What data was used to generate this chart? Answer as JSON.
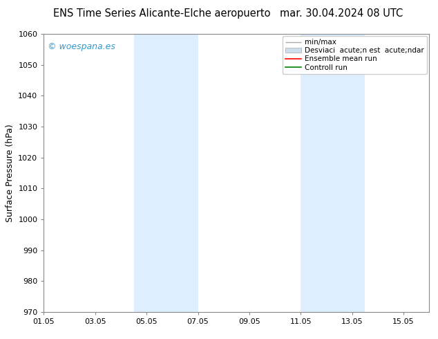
{
  "title_left": "ENS Time Series Alicante-Elche aeropuerto",
  "title_right": "mar. 30.04.2024 08 UTC",
  "ylabel": "Surface Pressure (hPa)",
  "ylim": [
    970,
    1060
  ],
  "yticks": [
    970,
    980,
    990,
    1000,
    1010,
    1020,
    1030,
    1040,
    1050,
    1060
  ],
  "xlim": [
    0,
    15
  ],
  "xtick_labels": [
    "01.05",
    "03.05",
    "05.05",
    "07.05",
    "09.05",
    "11.05",
    "13.05",
    "15.05"
  ],
  "xtick_positions": [
    0,
    2,
    4,
    6,
    8,
    10,
    12,
    14
  ],
  "shaded_bands": [
    {
      "x_start": 3.5,
      "x_end": 6.0,
      "color": "#ddeeff"
    },
    {
      "x_start": 10.0,
      "x_end": 12.5,
      "color": "#ddeeff"
    }
  ],
  "watermark": "© woespana.es",
  "watermark_color": "#3399cc",
  "watermark_fontsize": 9,
  "bg_color": "#ffffff",
  "legend_minmax_label": "min/max",
  "legend_std_label": "Desviaci  acute;n est  acute;ndar",
  "legend_ens_label": "Ensemble mean run",
  "legend_ctrl_label": "Controll run",
  "legend_minmax_color": "#aaaaaa",
  "legend_std_color": "#ccddee",
  "legend_ens_color": "#ff0000",
  "legend_ctrl_color": "#008000",
  "title_fontsize": 10.5,
  "ylabel_fontsize": 9,
  "tick_fontsize": 8,
  "legend_fontsize": 7.5,
  "spine_color": "#888888"
}
